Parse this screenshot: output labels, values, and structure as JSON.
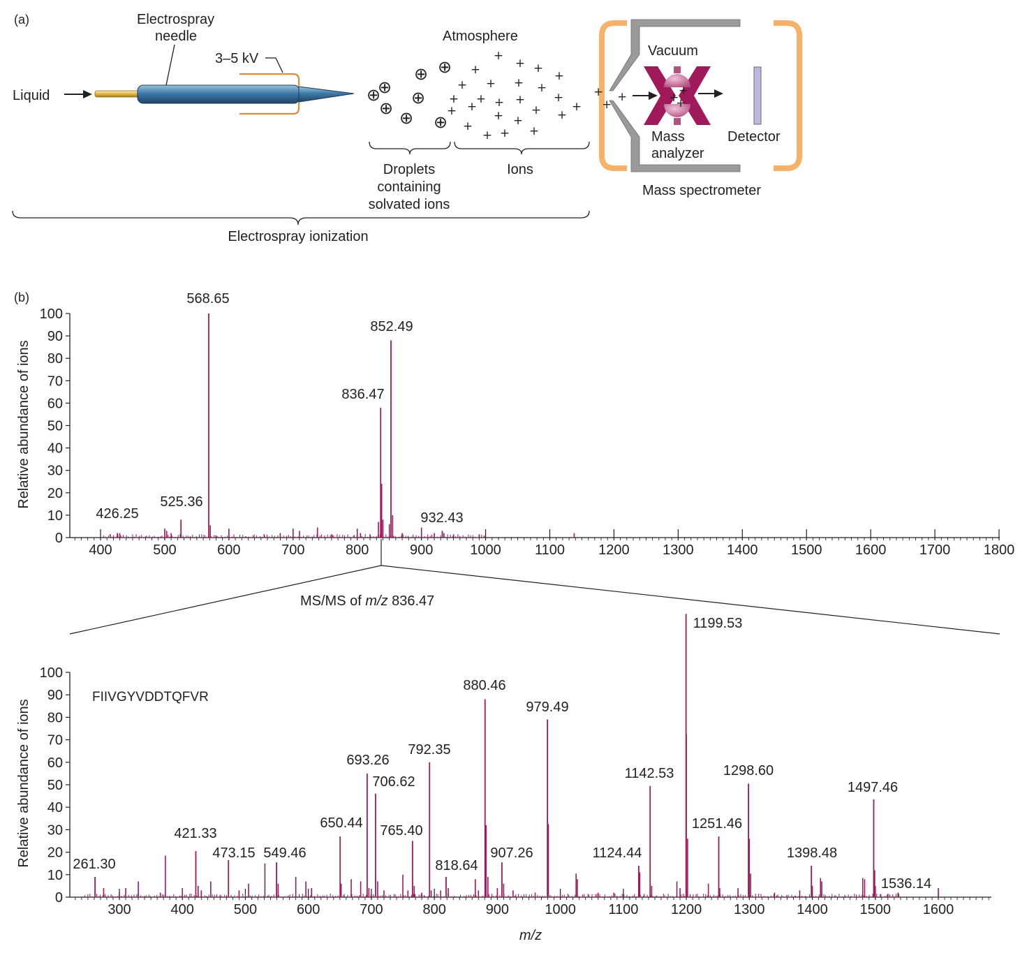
{
  "panel_a": {
    "label": "(a)",
    "liquid": "Liquid",
    "needle_line1": "Electrospray",
    "needle_line2": "needle",
    "voltage": "3–5 kV",
    "atmosphere": "Atmosphere",
    "droplets_line1": "Droplets",
    "droplets_line2": "containing",
    "droplets_line3": "solvated ions",
    "ions": "Ions",
    "electrospray_ionization": "Electrospray ionization",
    "vacuum": "Vacuum",
    "mass_analyzer_line1": "Mass",
    "mass_analyzer_line2": "analyzer",
    "detector": "Detector",
    "mass_spectrometer": "Mass spectrometer",
    "droplet_symbol": "⊕",
    "ion_symbol": "+"
  },
  "panel_b": {
    "label": "(b)",
    "zoom_label_prefix": "MS/MS of ",
    "zoom_label_italic": "m/z",
    "zoom_label_suffix": " 836.47"
  },
  "colors": {
    "peak": "#a0195a",
    "needle": "#3f7aa8",
    "bracket": "#f5b77a",
    "analyzer": "#a0195a",
    "detector": "#b8b4d6",
    "vacuum_wall": "#8c8c8c",
    "text": "#231f20"
  },
  "chart_data": [
    {
      "type": "bar",
      "title": "",
      "xlabel": "",
      "ylabel": "Relative abundance of ions",
      "xlim": [
        350,
        1800
      ],
      "ylim": [
        0,
        100
      ],
      "xticks": [
        400,
        500,
        600,
        700,
        800,
        900,
        1000,
        1100,
        1200,
        1300,
        1400,
        1500,
        1600,
        1700,
        1800
      ],
      "yticks": [
        0,
        10,
        20,
        30,
        40,
        50,
        60,
        70,
        80,
        90,
        100
      ],
      "labeled_peaks": [
        {
          "x": 426.25,
          "y": 2,
          "label": "426.25"
        },
        {
          "x": 525.36,
          "y": 8,
          "label": "525.36"
        },
        {
          "x": 568.65,
          "y": 100,
          "label": "568.65"
        },
        {
          "x": 836.47,
          "y": 58,
          "label": "836.47"
        },
        {
          "x": 852.49,
          "y": 88,
          "label": "852.49"
        },
        {
          "x": 932.43,
          "y": 3,
          "label": "932.43"
        }
      ],
      "minor_peaks": [
        {
          "x": 415,
          "y": 1.5
        },
        {
          "x": 430,
          "y": 2
        },
        {
          "x": 500,
          "y": 4
        },
        {
          "x": 503,
          "y": 3
        },
        {
          "x": 510,
          "y": 2
        },
        {
          "x": 571,
          "y": 5.5
        },
        {
          "x": 580,
          "y": 1
        },
        {
          "x": 600,
          "y": 4
        },
        {
          "x": 655,
          "y": 1.5
        },
        {
          "x": 680,
          "y": 2
        },
        {
          "x": 700,
          "y": 4
        },
        {
          "x": 710,
          "y": 3
        },
        {
          "x": 738,
          "y": 4.5
        },
        {
          "x": 760,
          "y": 1.5
        },
        {
          "x": 800,
          "y": 4
        },
        {
          "x": 805,
          "y": 2
        },
        {
          "x": 820,
          "y": 1.5
        },
        {
          "x": 833,
          "y": 7
        },
        {
          "x": 838,
          "y": 24
        },
        {
          "x": 840,
          "y": 8
        },
        {
          "x": 850,
          "y": 6
        },
        {
          "x": 855,
          "y": 10
        },
        {
          "x": 870,
          "y": 2
        },
        {
          "x": 900,
          "y": 4.5
        },
        {
          "x": 920,
          "y": 2
        },
        {
          "x": 935,
          "y": 2
        },
        {
          "x": 950,
          "y": 1.5
        },
        {
          "x": 990,
          "y": 1.5
        },
        {
          "x": 1138,
          "y": 2
        }
      ]
    },
    {
      "type": "bar",
      "title": "",
      "xlabel": "m/z",
      "ylabel": "Relative abundance of ions",
      "annotation": "FIIVGYVDDTQFVR",
      "xlim": [
        220,
        1700
      ],
      "ylim": [
        0,
        100
      ],
      "xticks": [
        300,
        400,
        500,
        600,
        700,
        800,
        900,
        1000,
        1100,
        1200,
        1300,
        1400,
        1500,
        1600
      ],
      "yticks": [
        0,
        10,
        20,
        30,
        40,
        50,
        60,
        70,
        80,
        90,
        100
      ],
      "labeled_peaks": [
        {
          "x": 261.3,
          "y": 9,
          "label": "261.30"
        },
        {
          "x": 421.33,
          "y": 20.5,
          "label": "421.33"
        },
        {
          "x": 473.15,
          "y": 16.5,
          "label": "473.15"
        },
        {
          "x": 549.46,
          "y": 15.5,
          "label": "549.46"
        },
        {
          "x": 650.44,
          "y": 27,
          "label": "650.44"
        },
        {
          "x": 693.26,
          "y": 55,
          "label": "693.26"
        },
        {
          "x": 706.62,
          "y": 46,
          "label": "706.62"
        },
        {
          "x": 765.4,
          "y": 25,
          "label": "765.40"
        },
        {
          "x": 792.35,
          "y": 60,
          "label": "792.35"
        },
        {
          "x": 818.64,
          "y": 9,
          "label": "818.64"
        },
        {
          "x": 880.46,
          "y": 88,
          "label": "880.46"
        },
        {
          "x": 907.26,
          "y": 15.5,
          "label": "907.26"
        },
        {
          "x": 979.49,
          "y": 79,
          "label": "979.49"
        },
        {
          "x": 1124.44,
          "y": 14,
          "label": "1124.44"
        },
        {
          "x": 1142.53,
          "y": 49.5,
          "label": "1142.53"
        },
        {
          "x": 1199.53,
          "y": 126,
          "label": "1199.53"
        },
        {
          "x": 1251.46,
          "y": 27,
          "label": "1251.46"
        },
        {
          "x": 1298.6,
          "y": 50.5,
          "label": "1298.60"
        },
        {
          "x": 1398.48,
          "y": 14,
          "label": "1398.48"
        },
        {
          "x": 1497.46,
          "y": 43.5,
          "label": "1497.46"
        },
        {
          "x": 1536.14,
          "y": 2,
          "label": "1536.14"
        }
      ],
      "minor_peaks": [
        {
          "x": 275,
          "y": 4
        },
        {
          "x": 300,
          "y": 2
        },
        {
          "x": 310,
          "y": 4
        },
        {
          "x": 330,
          "y": 7
        },
        {
          "x": 365,
          "y": 2
        },
        {
          "x": 373,
          "y": 18.5
        },
        {
          "x": 400,
          "y": 4
        },
        {
          "x": 425,
          "y": 5
        },
        {
          "x": 430,
          "y": 3
        },
        {
          "x": 445,
          "y": 7
        },
        {
          "x": 490,
          "y": 3
        },
        {
          "x": 505,
          "y": 6
        },
        {
          "x": 531,
          "y": 15
        },
        {
          "x": 552,
          "y": 6
        },
        {
          "x": 580,
          "y": 9
        },
        {
          "x": 596,
          "y": 7
        },
        {
          "x": 605,
          "y": 4
        },
        {
          "x": 652,
          "y": 6
        },
        {
          "x": 668,
          "y": 8
        },
        {
          "x": 683,
          "y": 7
        },
        {
          "x": 696,
          "y": 4
        },
        {
          "x": 710,
          "y": 7
        },
        {
          "x": 720,
          "y": 3
        },
        {
          "x": 750,
          "y": 10
        },
        {
          "x": 758,
          "y": 3
        },
        {
          "x": 768,
          "y": 5
        },
        {
          "x": 780,
          "y": 2
        },
        {
          "x": 795,
          "y": 3
        },
        {
          "x": 810,
          "y": 3
        },
        {
          "x": 822,
          "y": 4
        },
        {
          "x": 865,
          "y": 8
        },
        {
          "x": 870,
          "y": 3
        },
        {
          "x": 882,
          "y": 32
        },
        {
          "x": 885,
          "y": 9
        },
        {
          "x": 900,
          "y": 4
        },
        {
          "x": 910,
          "y": 6
        },
        {
          "x": 925,
          "y": 3
        },
        {
          "x": 960,
          "y": 2
        },
        {
          "x": 981,
          "y": 32.5
        },
        {
          "x": 1025,
          "y": 10.5
        },
        {
          "x": 1027,
          "y": 8
        },
        {
          "x": 1060,
          "y": 2
        },
        {
          "x": 1085,
          "y": 2
        },
        {
          "x": 1126,
          "y": 11
        },
        {
          "x": 1145,
          "y": 5
        },
        {
          "x": 1185,
          "y": 7
        },
        {
          "x": 1190,
          "y": 4
        },
        {
          "x": 1200,
          "y": 72.5
        },
        {
          "x": 1202,
          "y": 26
        },
        {
          "x": 1235,
          "y": 6
        },
        {
          "x": 1253,
          "y": 4
        },
        {
          "x": 1282,
          "y": 4
        },
        {
          "x": 1300,
          "y": 26
        },
        {
          "x": 1302,
          "y": 10.5
        },
        {
          "x": 1340,
          "y": 2
        },
        {
          "x": 1380,
          "y": 3
        },
        {
          "x": 1400,
          "y": 5
        },
        {
          "x": 1413,
          "y": 8.5
        },
        {
          "x": 1415,
          "y": 7
        },
        {
          "x": 1480,
          "y": 8.5
        },
        {
          "x": 1483,
          "y": 8
        },
        {
          "x": 1499,
          "y": 12
        },
        {
          "x": 1500,
          "y": 5
        },
        {
          "x": 1520,
          "y": 1.5
        },
        {
          "x": 1600,
          "y": 4
        }
      ]
    }
  ]
}
